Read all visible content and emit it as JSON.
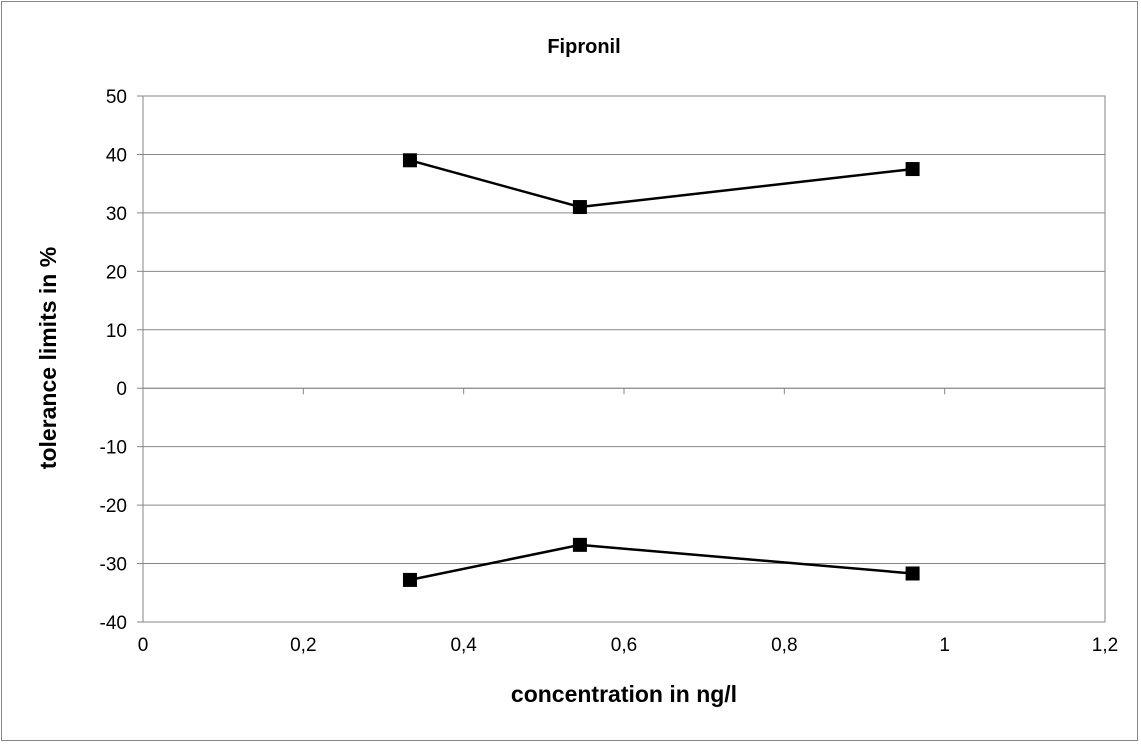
{
  "chart_data": {
    "type": "line",
    "title": "Fipronil",
    "xlabel": "concentration in ng/l",
    "ylabel": "tolerance limits in %",
    "xlim": [
      0,
      1.2
    ],
    "ylim": [
      -40,
      50
    ],
    "x_ticks": [
      "0",
      "0,2",
      "0,4",
      "0,6",
      "0,8",
      "1",
      "1,2"
    ],
    "y_ticks": [
      "50",
      "40",
      "30",
      "20",
      "10",
      "0",
      "-10",
      "-20",
      "-30",
      "-40"
    ],
    "grid": "horizontal",
    "legend": "none",
    "marker": "square",
    "line_color": "#000000",
    "gridline_color": "#868686",
    "series": [
      {
        "x": [
          0.333,
          0.545,
          0.96
        ],
        "y": [
          39.0,
          31.0,
          37.5
        ]
      },
      {
        "x": [
          0.333,
          0.545,
          0.96
        ],
        "y": [
          -32.8,
          -26.8,
          -31.7
        ]
      }
    ]
  }
}
